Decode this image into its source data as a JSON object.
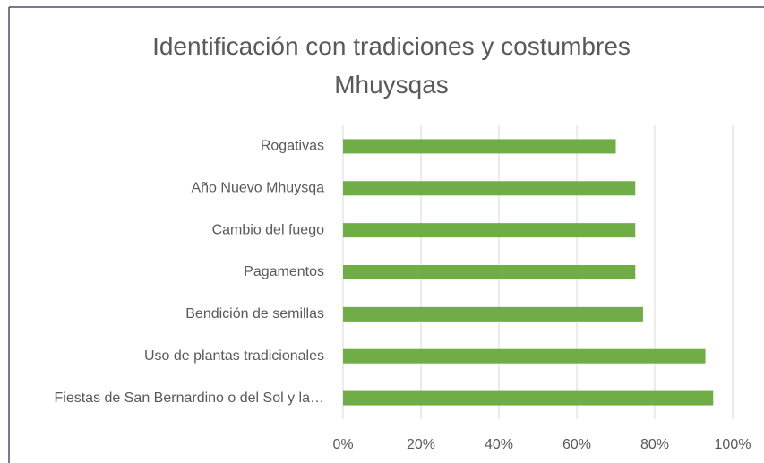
{
  "chart_data": {
    "type": "bar",
    "orientation": "horizontal",
    "title": "Identificación con tradiciones y costumbres Mhuysqas",
    "categories": [
      "Rogativas",
      "Año Nuevo Mhuysqa",
      "Cambio del fuego",
      "Pagamentos",
      "Bendición de semillas",
      "Uso de plantas tradicionales",
      "Fiestas de San Bernardino o del Sol y la…"
    ],
    "values": [
      70,
      75,
      75,
      75,
      77,
      93,
      95
    ],
    "color": "#70ad47",
    "xlim": [
      0,
      100
    ],
    "xticks": [
      {
        "value": 0,
        "label": "0%"
      },
      {
        "value": 20,
        "label": "20%"
      },
      {
        "value": 40,
        "label": "40%"
      },
      {
        "value": 60,
        "label": "60%"
      },
      {
        "value": 80,
        "label": "80%"
      },
      {
        "value": 100,
        "label": "100%"
      }
    ],
    "grid": true
  }
}
